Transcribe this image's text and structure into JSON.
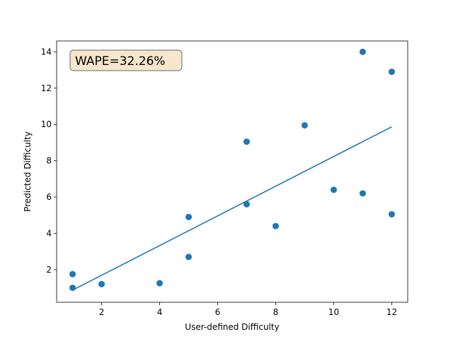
{
  "chart_data": {
    "type": "scatter",
    "title": "",
    "xlabel": "User-defined Difficulty",
    "ylabel": "Predicted Difficulty",
    "xlim": [
      0.45,
      12.55
    ],
    "ylim": [
      0.2,
      14.6
    ],
    "x_ticks": [
      2,
      4,
      6,
      8,
      10,
      12
    ],
    "y_ticks": [
      2,
      4,
      6,
      8,
      10,
      12,
      14
    ],
    "grid": false,
    "series": [
      {
        "type": "scatter",
        "color": "#1f77b4",
        "points": [
          {
            "x": 1,
            "y": 1.75
          },
          {
            "x": 1,
            "y": 1.0
          },
          {
            "x": 2,
            "y": 1.2
          },
          {
            "x": 4,
            "y": 1.25
          },
          {
            "x": 5,
            "y": 4.9
          },
          {
            "x": 5,
            "y": 2.7
          },
          {
            "x": 7,
            "y": 9.05
          },
          {
            "x": 7,
            "y": 5.6
          },
          {
            "x": 8,
            "y": 4.4
          },
          {
            "x": 9,
            "y": 9.95
          },
          {
            "x": 10,
            "y": 6.4
          },
          {
            "x": 11,
            "y": 14.0
          },
          {
            "x": 11,
            "y": 6.2
          },
          {
            "x": 12,
            "y": 12.9
          },
          {
            "x": 12,
            "y": 5.05
          }
        ]
      },
      {
        "type": "line",
        "color": "#1f77b4",
        "points": [
          {
            "x": 1,
            "y": 0.87
          },
          {
            "x": 12,
            "y": 9.87
          }
        ]
      }
    ],
    "annotation": {
      "text": "WAPE=32.26%",
      "position": "top-left",
      "background": "#f5e6cc",
      "border": "#808080"
    }
  }
}
